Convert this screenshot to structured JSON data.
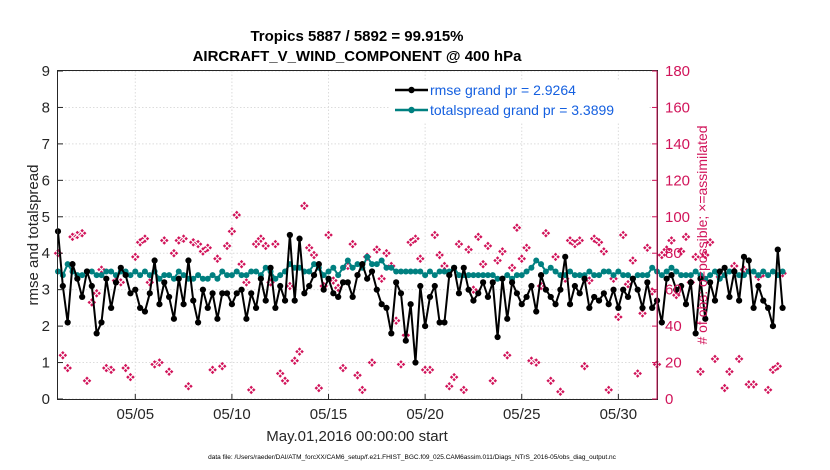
{
  "chart_data": {
    "type": "line",
    "title": "Tropics 5887 / 5892 = 99.915%",
    "subtitle": "AIRCRAFT_V_WIND_COMPONENT @ 400 hPa",
    "xlabel": "May.01,2016 00:00:00 start",
    "ylabel_left": "rmse and totalspread",
    "ylabel_right": "# of obs: o=possible; ×=assimilated",
    "ylim_left": [
      0,
      9
    ],
    "ylim_right": [
      0,
      180
    ],
    "xlim_days": [
      1.0,
      32.0
    ],
    "yticks_left": [
      "0",
      "1",
      "2",
      "3",
      "4",
      "5",
      "6",
      "7",
      "8",
      "9"
    ],
    "yticks_right": [
      "0",
      "20",
      "40",
      "60",
      "80",
      "100",
      "120",
      "140",
      "160",
      "180"
    ],
    "xticks": [
      {
        "day": 5,
        "label": "05/05"
      },
      {
        "day": 10,
        "label": "05/10"
      },
      {
        "day": 15,
        "label": "05/15"
      },
      {
        "day": 20,
        "label": "05/20"
      },
      {
        "day": 25,
        "label": "05/25"
      },
      {
        "day": 30,
        "label": "05/30"
      }
    ],
    "grid": true,
    "legend_position": "top-right",
    "footnote": "data file: /Users/raeder/DAI/ATM_forcXX/CAM6_setup/f.e21.FHIST_BGC.f09_025.CAM6assim.011/Diags_NTrS_2016-05/obs_diag_output.nc",
    "colors": {
      "rmse": "#000000",
      "totalspread": "#008080",
      "obs": "#d1145a",
      "legend_text": "#1560e0",
      "right_axis": "#d1145a"
    },
    "series": [
      {
        "name": "rmse",
        "legend": "rmse grand pr = 2.9264",
        "axis": "left",
        "x_start_day": 1.0,
        "x_step_day": 0.25,
        "values": [
          4.6,
          3.1,
          2.1,
          3.7,
          3.3,
          2.8,
          3.5,
          3.1,
          1.8,
          2.1,
          3.3,
          2.5,
          3.2,
          3.6,
          3.4,
          2.9,
          3.0,
          2.5,
          2.4,
          2.9,
          3.8,
          2.6,
          3.2,
          2.8,
          2.2,
          3.3,
          2.6,
          3.8,
          2.7,
          2.1,
          3.0,
          2.5,
          2.9,
          2.2,
          2.9,
          2.9,
          2.6,
          2.9,
          3.0,
          2.2,
          2.9,
          2.5,
          3.3,
          2.7,
          3.6,
          2.5,
          3.1,
          2.7,
          4.5,
          2.7,
          4.4,
          2.9,
          3.1,
          3.4,
          3.7,
          3.0,
          3.3,
          2.9,
          2.8,
          3.2,
          3.2,
          2.8,
          3.4,
          3.7,
          3.3,
          3.5,
          3.0,
          2.6,
          2.5,
          1.8,
          3.2,
          2.9,
          1.6,
          2.6,
          1.0,
          3.1,
          2.0,
          2.8,
          3.1,
          2.1,
          2.1,
          3.4,
          3.6,
          2.9,
          3.6,
          3.0,
          2.7,
          2.9,
          3.2,
          2.8,
          3.2,
          1.7,
          3.3,
          2.2,
          3.2,
          2.9,
          2.6,
          2.8,
          3.1,
          2.4,
          3.4,
          3.0,
          2.8,
          2.6,
          3.0,
          3.9,
          2.6,
          3.1,
          2.9,
          3.3,
          2.5,
          2.8,
          2.7,
          2.9,
          2.6,
          3.0,
          2.5,
          3.0,
          2.8,
          3.3,
          3.0,
          2.5,
          3.2,
          2.5,
          2.7,
          2.1,
          3.3,
          3.4,
          3.0,
          3.1,
          2.6,
          3.2,
          1.8,
          3.3,
          2.2,
          3.2,
          2.7,
          3.5,
          3.6,
          2.8,
          3.5,
          2.7,
          3.9,
          3.8,
          2.5,
          3.1,
          2.7,
          2.5,
          2.0,
          4.1,
          2.5
        ]
      },
      {
        "name": "totalspread",
        "legend": "totalspread grand pr = 3.3899",
        "axis": "left",
        "x_start_day": 1.0,
        "x_step_day": 0.25,
        "values": [
          3.5,
          3.4,
          3.7,
          3.5,
          3.4,
          3.4,
          3.5,
          3.5,
          3.4,
          3.4,
          3.5,
          3.5,
          3.4,
          3.5,
          3.5,
          3.4,
          3.5,
          3.4,
          3.5,
          3.4,
          3.5,
          3.3,
          3.4,
          3.4,
          3.3,
          3.5,
          3.4,
          3.3,
          3.3,
          3.4,
          3.3,
          3.3,
          3.4,
          3.3,
          3.5,
          3.4,
          3.4,
          3.5,
          3.4,
          3.4,
          3.5,
          3.5,
          3.4,
          3.6,
          3.5,
          3.3,
          3.4,
          3.5,
          3.7,
          3.6,
          3.6,
          3.5,
          3.5,
          3.7,
          3.6,
          3.4,
          3.5,
          3.6,
          3.4,
          3.6,
          3.8,
          3.6,
          3.7,
          3.6,
          3.9,
          3.7,
          3.7,
          3.8,
          3.6,
          3.6,
          3.5,
          3.5,
          3.5,
          3.5,
          3.5,
          3.5,
          3.4,
          3.5,
          3.4,
          3.5,
          3.5,
          3.5,
          3.6,
          3.4,
          3.4,
          3.4,
          3.4,
          3.4,
          3.4,
          3.4,
          3.4,
          3.3,
          3.3,
          3.4,
          3.3,
          3.4,
          3.4,
          3.5,
          3.6,
          3.8,
          3.7,
          3.5,
          3.6,
          3.5,
          3.4,
          3.4,
          3.5,
          3.4,
          3.4,
          3.4,
          3.5,
          3.4,
          3.4,
          3.5,
          3.5,
          3.4,
          3.5,
          3.4,
          3.4,
          3.3,
          3.4,
          3.4,
          3.4,
          3.6,
          3.5,
          3.4,
          3.5,
          3.6,
          3.5,
          3.4,
          3.4,
          3.4,
          3.5,
          3.4,
          3.3,
          3.4,
          3.5,
          3.3,
          3.4,
          3.5,
          3.5,
          3.4,
          3.4,
          3.5,
          3.5,
          3.4,
          3.5,
          3.4,
          3.5,
          3.4,
          3.5
        ]
      },
      {
        "name": "obs_possible",
        "axis": "right",
        "x_start_day": 1.0,
        "x_step_day": 0.25,
        "values": [
          80,
          24,
          17,
          89,
          90,
          91,
          10,
          53,
          58,
          71,
          17,
          16,
          65,
          64,
          17,
          12,
          78,
          86,
          88,
          64,
          19,
          20,
          87,
          15,
          80,
          87,
          88,
          7,
          86,
          85,
          81,
          83,
          16,
          77,
          18,
          84,
          92,
          101,
          74,
          64,
          5,
          85,
          88,
          84,
          64,
          85,
          14,
          10,
          62,
          21,
          26,
          106,
          83,
          79,
          6,
          62,
          90,
          65,
          61,
          17,
          73,
          85,
          13,
          5,
          78,
          20,
          82,
          66,
          80,
          73,
          43,
          19,
          35,
          86,
          88,
          77,
          16,
          16,
          90,
          79,
          73,
          7,
          12,
          85,
          5,
          82,
          60,
          89,
          74,
          84,
          10,
          76,
          81,
          24,
          72,
          94,
          77,
          83,
          21,
          20,
          62,
          91,
          10,
          78,
          4,
          66,
          87,
          85,
          87,
          18,
          65,
          88,
          86,
          81,
          5,
          66,
          45,
          90,
          63,
          76,
          14,
          47,
          83,
          59,
          19,
          79,
          82,
          87,
          57,
          81,
          89,
          64,
          78,
          15,
          79,
          86,
          22,
          67,
          6,
          15,
          73,
          22,
          71,
          8,
          8,
          67,
          69,
          5,
          16,
          18,
          69
        ]
      },
      {
        "name": "obs_assimilated",
        "axis": "right",
        "x_start_day": 1.0,
        "x_step_day": 0.25,
        "values": [
          80,
          24,
          17,
          89,
          90,
          91,
          10,
          53,
          58,
          71,
          17,
          16,
          65,
          64,
          17,
          12,
          78,
          86,
          88,
          64,
          19,
          20,
          87,
          15,
          80,
          87,
          88,
          7,
          86,
          85,
          81,
          83,
          16,
          77,
          18,
          84,
          92,
          101,
          74,
          64,
          5,
          85,
          88,
          84,
          64,
          85,
          14,
          10,
          62,
          21,
          26,
          106,
          83,
          79,
          6,
          62,
          90,
          65,
          61,
          17,
          73,
          85,
          13,
          5,
          78,
          20,
          82,
          66,
          80,
          73,
          43,
          19,
          35,
          86,
          88,
          77,
          16,
          16,
          90,
          79,
          73,
          7,
          12,
          85,
          5,
          82,
          60,
          89,
          74,
          84,
          10,
          76,
          81,
          24,
          72,
          94,
          77,
          83,
          21,
          20,
          62,
          91,
          10,
          78,
          4,
          66,
          87,
          85,
          87,
          18,
          65,
          88,
          86,
          81,
          5,
          66,
          45,
          90,
          63,
          76,
          14,
          47,
          83,
          59,
          19,
          79,
          82,
          87,
          57,
          81,
          89,
          64,
          78,
          15,
          79,
          86,
          22,
          67,
          6,
          15,
          73,
          22,
          71,
          8,
          8,
          67,
          69,
          5,
          16,
          18,
          69
        ]
      }
    ]
  }
}
